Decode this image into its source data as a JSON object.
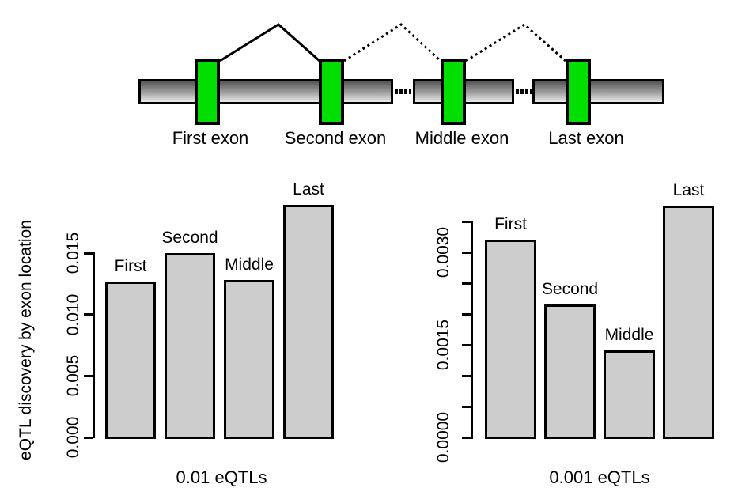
{
  "diagram": {
    "exons": [
      {
        "label": "First exon"
      },
      {
        "label": "Second exon"
      },
      {
        "label": "Middle exon"
      },
      {
        "label": "Last exon"
      }
    ],
    "splice_lines": [
      {
        "from": "First exon",
        "to": "Second exon",
        "style": "solid"
      },
      {
        "from": "Second exon",
        "to": "Middle exon",
        "style": "dotted"
      },
      {
        "from": "Middle exon",
        "to": "Last exon",
        "style": "dotted"
      }
    ],
    "colors": {
      "exon_fill": "#00DF00",
      "outline": "#000000",
      "gene_bar_top": "#565656",
      "gene_bar_bottom": "#E9E9E9"
    }
  },
  "chart_data": [
    {
      "type": "bar",
      "categories": [
        "First",
        "Second",
        "Middle",
        "Last"
      ],
      "values": [
        0.0127,
        0.015,
        0.0128,
        0.0189
      ],
      "xlabel": "0.01 eQTLs",
      "ylabel": "eQTL discovery by exon location",
      "yticks": [
        0.0,
        0.005,
        0.01,
        0.015
      ],
      "ytick_labels": [
        "0.000",
        "0.005",
        "0.010",
        "0.015"
      ],
      "ylim": [
        0,
        0.015
      ],
      "grid": false,
      "legend": "none",
      "bar_color": "#CDCDCD",
      "bar_border_color": "#000000"
    },
    {
      "type": "bar",
      "categories": [
        "First",
        "Second",
        "Middle",
        "Last"
      ],
      "values": [
        0.0032,
        0.00215,
        0.00141,
        0.00376
      ],
      "xlabel": "0.001 eQTLs",
      "ylabel": "",
      "yticks": [
        0.0,
        0.0005,
        0.001,
        0.0015,
        0.002,
        0.0025,
        0.003,
        0.0035
      ],
      "ytick_labels": [
        "0.0000",
        "",
        "",
        "0.0015",
        "",
        "",
        "0.0030",
        ""
      ],
      "ylim": [
        0,
        0.0035
      ],
      "grid": false,
      "legend": "none",
      "bar_color": "#CDCDCD",
      "bar_border_color": "#000000"
    }
  ]
}
